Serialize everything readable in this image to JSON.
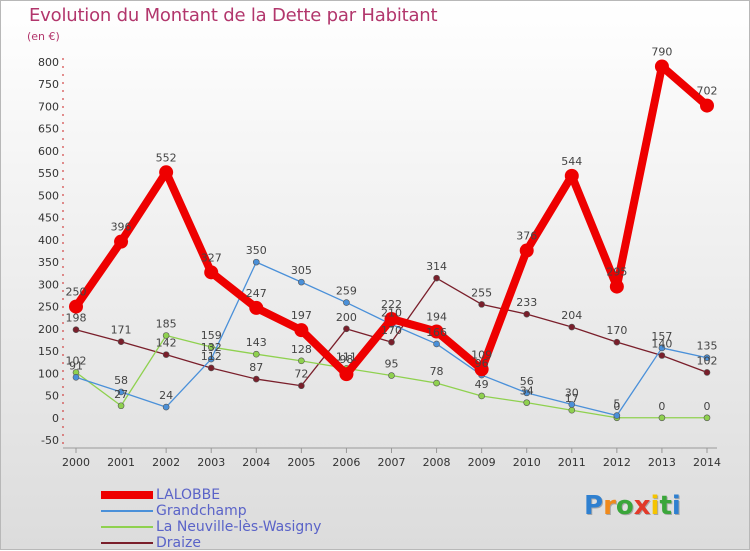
{
  "header": {
    "title": "Evolution du Montant de la Dette par Habitant",
    "unit": "(en €)"
  },
  "logo": {
    "text": "Proxiti",
    "letter_colors": [
      "#2f80d0",
      "#f08a1c",
      "#3aa63a",
      "#e23a2a",
      "#f5c400",
      "#3aa63a",
      "#2f80d0"
    ]
  },
  "chart_data": {
    "type": "line",
    "title": "Evolution du Montant de la Dette par Habitant",
    "ylabel": "(en €)",
    "xlabel": "",
    "x": [
      "2000",
      "2001",
      "2002",
      "2003",
      "2004",
      "2005",
      "2006",
      "2007",
      "2008",
      "2009",
      "2010",
      "2011",
      "2012",
      "2013",
      "2014"
    ],
    "ylim": [
      -50,
      800
    ],
    "yticks": [
      -50,
      0,
      50,
      100,
      150,
      200,
      250,
      300,
      350,
      400,
      450,
      500,
      550,
      600,
      650,
      700,
      750,
      800
    ],
    "grid": false,
    "legend_placement": "bottom-left",
    "series": [
      {
        "name": "LALOBBE",
        "color": "#ee0000",
        "values": [
          250,
          396,
          552,
          327,
          247,
          197,
          98,
          222,
          194,
          109,
          376,
          544,
          295,
          790,
          702
        ],
        "labels": [
          "250",
          "396",
          "552",
          "327",
          "247",
          "197",
          "98",
          "222",
          "194",
          "109",
          "376",
          "544",
          "295",
          "790",
          "702"
        ]
      },
      {
        "name": "Grandchamp",
        "color": "#4a90d9",
        "values": [
          91,
          58,
          24,
          132,
          350,
          305,
          259,
          210,
          166,
          96,
          56,
          30,
          5,
          157,
          135
        ],
        "labels": [
          "91",
          "58",
          "24",
          "132",
          "350",
          "305",
          "259",
          "210",
          "166",
          "96",
          "56",
          "30",
          "5",
          "157",
          "135"
        ]
      },
      {
        "name": "La Neuville-lès-Wasigny",
        "color": "#8fd14f",
        "values": [
          102,
          27,
          185,
          159,
          143,
          128,
          111,
          95,
          78,
          49,
          34,
          17,
          0,
          0,
          0
        ],
        "labels": [
          "102",
          "27",
          "185",
          "159",
          "143",
          "128",
          "111",
          "95",
          "78",
          "49",
          "34",
          "17",
          "0",
          "0",
          "0"
        ]
      },
      {
        "name": "Draize",
        "color": "#7a1f2b",
        "values": [
          198,
          171,
          142,
          112,
          87,
          72,
          200,
          170,
          314,
          255,
          233,
          204,
          170,
          140,
          102
        ],
        "labels": [
          "198",
          "171",
          "142",
          "112",
          "87",
          "72",
          "200",
          "170",
          "314",
          "255",
          "233",
          "204",
          "170",
          "140",
          "102"
        ]
      }
    ]
  }
}
